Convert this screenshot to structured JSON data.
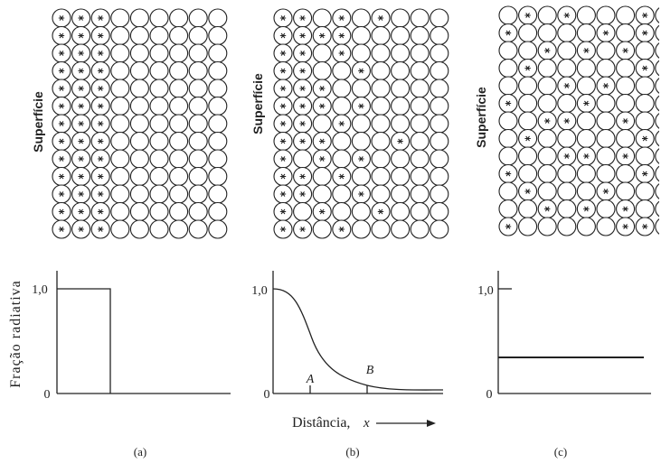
{
  "panels": [
    {
      "surface_label": "Superfície",
      "y_tick_top": "1,0",
      "y_tick_bottom": "0",
      "caption": "(a)"
    },
    {
      "surface_label": "Superfície",
      "y_tick_top": "1,0",
      "y_tick_bottom": "0",
      "caption": "(b)",
      "markers": [
        "A",
        "B"
      ]
    },
    {
      "surface_label": "Superfície",
      "y_tick_top": "1,0",
      "y_tick_bottom": "0",
      "caption": "(c)"
    }
  ],
  "y_axis_label": "Fração radiativa",
  "x_axis_label": "Distância,",
  "x_axis_symbol": "x"
}
